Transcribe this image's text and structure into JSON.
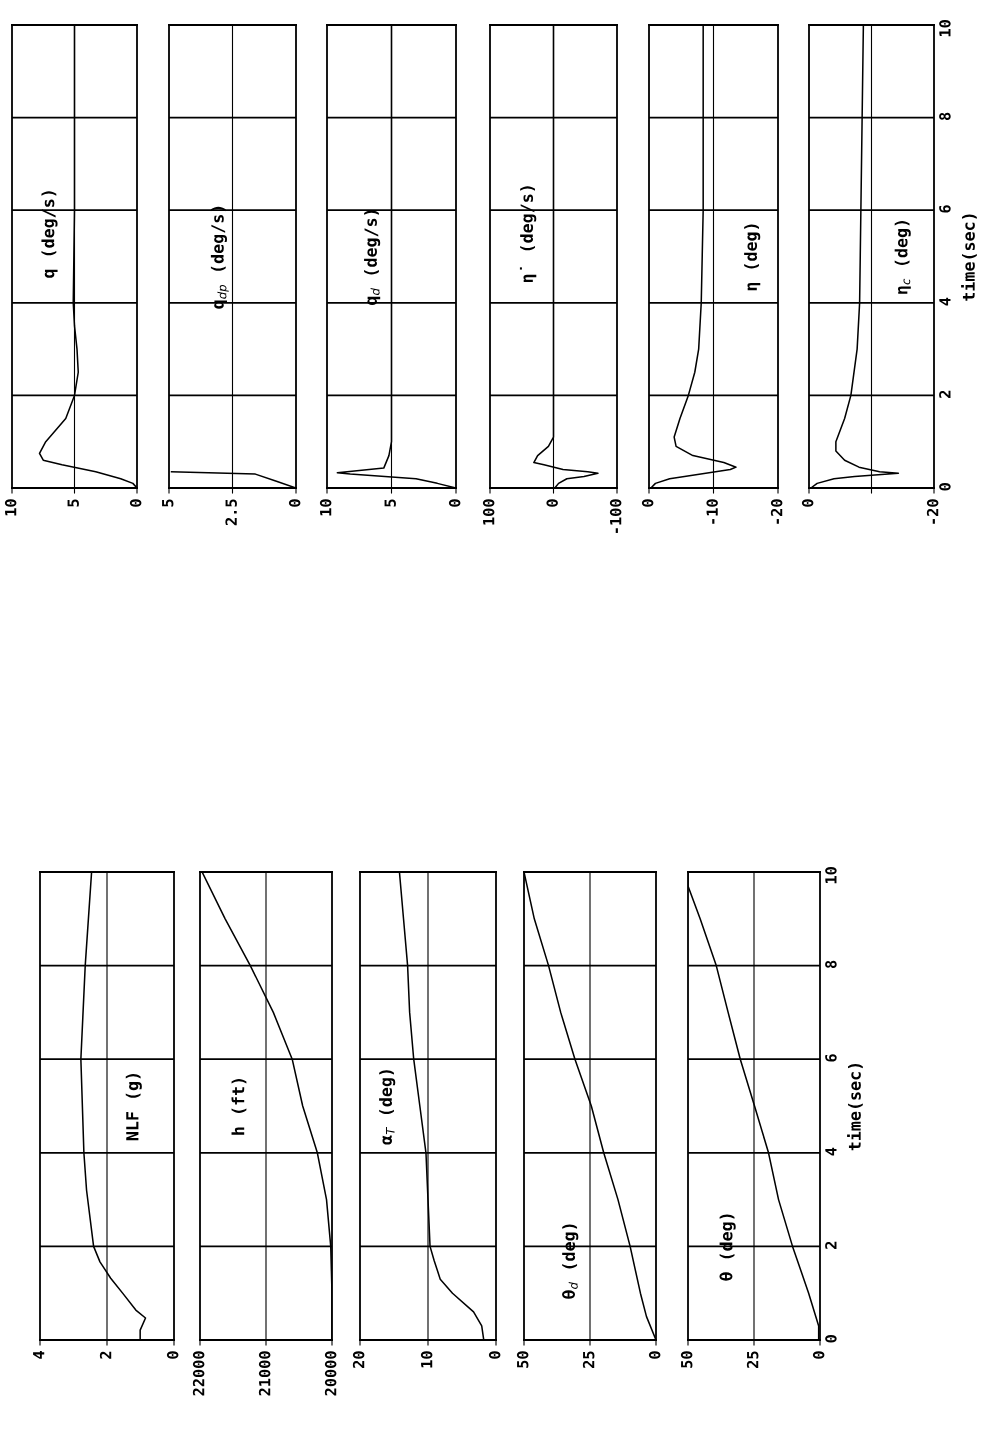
{
  "chart_data": [
    {
      "type": "line",
      "annotations": [
        "NLF (g)"
      ],
      "ylim": [
        0,
        10
      ],
      "yticks": [
        0,
        2,
        4,
        6,
        8,
        10
      ],
      "xlim": [
        4,
        0
      ],
      "xticks": [
        0,
        2,
        4
      ],
      "grid": "y",
      "tick_labels": "x",
      "ref_lines": [
        {
          "axis": "x",
          "value": 2
        }
      ],
      "series": [
        {
          "color": "#000000",
          "values": [
            0,
            0.21,
            0.47,
            0.64,
            0.98,
            1.32,
            1.67,
            2,
            3.2,
            4,
            6,
            8,
            10
          ],
          "x": [
            1.01,
            1.01,
            0.85,
            1.14,
            1.51,
            1.89,
            2.21,
            2.4,
            2.61,
            2.69,
            2.78,
            2.65,
            2.46
          ]
        }
      ]
    },
    {
      "type": "line",
      "annotations": [
        "h (ft)"
      ],
      "ylim": [
        0,
        10
      ],
      "yticks": [
        0,
        2,
        4,
        6,
        8,
        10
      ],
      "xlim": [
        22000,
        20000
      ],
      "xticks": [
        20000,
        21000,
        22000
      ],
      "grid": "y",
      "tick_labels": "x",
      "ref_lines": [
        {
          "axis": "x",
          "value": 21000
        }
      ],
      "series": [
        {
          "color": "#000000",
          "values": [
            0,
            1,
            2,
            3,
            4,
            5,
            6,
            7,
            8,
            9,
            10
          ],
          "x": [
            20000,
            20000,
            20019,
            20083,
            20222,
            20444,
            20603,
            20889,
            21238,
            21619,
            21968
          ]
        }
      ]
    },
    {
      "type": "line",
      "annotations": [
        "α$_{T}$ (deg)"
      ],
      "ylim": [
        0,
        10
      ],
      "yticks": [
        0,
        2,
        4,
        6,
        8,
        10
      ],
      "xlim": [
        20,
        0
      ],
      "xticks": [
        0,
        10,
        20
      ],
      "grid": "y",
      "tick_labels": "x",
      "ref_lines": [
        {
          "axis": "x",
          "value": 10
        }
      ],
      "series": [
        {
          "color": "#000000",
          "values": [
            0,
            0.3,
            0.6,
            1,
            1.3,
            1.7,
            2,
            3,
            4,
            5,
            6,
            7,
            8,
            9,
            10
          ],
          "x": [
            1.8,
            2.1,
            3.3,
            6.4,
            8.2,
            9.1,
            9.7,
            10,
            10.3,
            11.2,
            12.1,
            12.7,
            13,
            13.6,
            14.2
          ]
        }
      ]
    },
    {
      "type": "line",
      "annotations": [
        "θ$_{d}$ (deg)"
      ],
      "ylim": [
        0,
        10
      ],
      "yticks": [
        0,
        2,
        4,
        6,
        8,
        10
      ],
      "xlim": [
        50,
        0
      ],
      "xticks": [
        0,
        25,
        50
      ],
      "grid": "y",
      "tick_labels": "x",
      "ref_lines": [
        {
          "axis": "x",
          "value": 25
        }
      ],
      "series": [
        {
          "color": "#000000",
          "values": [
            0,
            0.5,
            1,
            2,
            3,
            4,
            5,
            6,
            7,
            8,
            9,
            10
          ],
          "x": [
            0,
            3.6,
            5.9,
            9.8,
            14.4,
            19.8,
            24.5,
            30.7,
            36.1,
            40.7,
            46.1,
            50
          ]
        }
      ]
    },
    {
      "type": "line",
      "annotations": [
        "θ (deg)"
      ],
      "ylabel": "time(sec)",
      "ylim": [
        0,
        10
      ],
      "yticks": [
        0,
        2,
        4,
        6,
        8,
        10
      ],
      "xlim": [
        50,
        0
      ],
      "xticks": [
        0,
        25,
        50
      ],
      "grid": "y",
      "ref_lines": [
        {
          "axis": "x",
          "value": 25
        }
      ],
      "series": [
        {
          "color": "#000000",
          "values": [
            0,
            0.3,
            1,
            2,
            3,
            4,
            5,
            6,
            7,
            8,
            9,
            9.7,
            10
          ],
          "x": [
            0.5,
            0.5,
            4.3,
            10.4,
            15.7,
            19.5,
            24.8,
            30.2,
            34.8,
            39.3,
            45.4,
            50,
            50
          ]
        }
      ]
    },
    {
      "type": "line",
      "annotations": [
        "q (deg/s)"
      ],
      "ylim": [
        0,
        10
      ],
      "yticks": [
        0,
        2,
        4,
        6,
        8,
        10
      ],
      "xlim": [
        10,
        0
      ],
      "xticks": [
        0,
        5,
        10
      ],
      "grid": "y",
      "tick_labels": "x",
      "ref_lines": [
        {
          "axis": "x",
          "value": 5
        }
      ],
      "series": [
        {
          "color": "#000000",
          "values": [
            0,
            0.1,
            0.2,
            0.35,
            0.5,
            0.6,
            0.75,
            1,
            1.5,
            2,
            2.5,
            3,
            3.5,
            4,
            6,
            8,
            10
          ],
          "x": [
            0,
            0.33,
            1.3,
            3.3,
            6,
            7.5,
            7.8,
            7.3,
            5.7,
            5,
            4.7,
            4.8,
            5,
            5.1,
            5,
            5,
            5
          ]
        }
      ]
    },
    {
      "type": "line",
      "annotations": [
        "q$_{dp}$ (deg/s)"
      ],
      "ylim": [
        0,
        10
      ],
      "yticks": [
        0,
        2,
        4,
        6,
        8,
        10
      ],
      "xlim": [
        5,
        0
      ],
      "xticks": [
        0,
        2.5,
        5
      ],
      "grid": "y",
      "tick_labels": "x",
      "ref_lines": [
        {
          "axis": "x",
          "value": 2.5
        }
      ],
      "series": [
        {
          "color": "#000000",
          "values": [
            0,
            0.15,
            0.3,
            0.35
          ],
          "x": [
            0,
            0.8,
            1.6,
            4.9
          ]
        }
      ]
    },
    {
      "type": "line",
      "annotations": [
        "q$_{d}$ (deg/s)"
      ],
      "ylim": [
        0,
        10
      ],
      "yticks": [
        0,
        2,
        4,
        6,
        8,
        10
      ],
      "xlim": [
        10,
        0
      ],
      "xticks": [
        0,
        5,
        10
      ],
      "grid": "y",
      "tick_labels": "x",
      "ref_lines": [
        {
          "axis": "x",
          "value": 5
        }
      ],
      "series": [
        {
          "color": "#000000",
          "values": [
            0,
            0.1,
            0.2,
            0.3,
            0.33,
            0.43,
            0.7,
            1,
            10
          ],
          "x": [
            0,
            1.45,
            3.1,
            8.2,
            9.2,
            5.6,
            5.2,
            5,
            5
          ]
        }
      ]
    },
    {
      "type": "line",
      "annotations": [
        "η̇ (deg/s)"
      ],
      "ylim": [
        0,
        10
      ],
      "yticks": [
        0,
        2,
        4,
        6,
        8,
        10
      ],
      "xlim": [
        100,
        -100
      ],
      "xticks": [
        -100,
        0,
        100
      ],
      "grid": "y",
      "tick_labels": "x",
      "ref_lines": [
        {
          "axis": "x",
          "value": 0
        }
      ],
      "series": [
        {
          "color": "#000000",
          "values": [
            0,
            0.1,
            0.2,
            0.25,
            0.32,
            0.35,
            0.4,
            0.5,
            0.55,
            0.7,
            0.9,
            1.1,
            10
          ],
          "x": [
            -2,
            -8,
            -21,
            -48,
            -70,
            -54,
            -15,
            15,
            31,
            25,
            8,
            0,
            0
          ]
        }
      ]
    },
    {
      "type": "line",
      "annotations": [
        "η (deg)"
      ],
      "ylim": [
        0,
        10
      ],
      "yticks": [
        0,
        2,
        4,
        6,
        8,
        10
      ],
      "xlim": [
        0,
        -20
      ],
      "xticks": [
        -20,
        -10,
        0
      ],
      "grid": "y",
      "tick_labels": "x",
      "ref_lines": [
        {
          "axis": "x",
          "value": -10
        }
      ],
      "series": [
        {
          "color": "#000000",
          "values": [
            0,
            0.1,
            0.2,
            0.25,
            0.4,
            0.45,
            0.55,
            0.7,
            0.9,
            1.1,
            1.5,
            2,
            2.5,
            3,
            4,
            6,
            8,
            10
          ],
          "x": [
            -0.3,
            -1,
            -3.2,
            -5.5,
            -12.6,
            -13.5,
            -11.6,
            -6.8,
            -4.2,
            -3.9,
            -4.8,
            -6.1,
            -7.1,
            -7.7,
            -8.1,
            -8.4,
            -8.4,
            -8.4
          ]
        }
      ]
    },
    {
      "type": "line",
      "annotations": [
        "η$_{c}$ (deg)"
      ],
      "ylabel": "time(sec)",
      "ylim": [
        0,
        10
      ],
      "yticks": [
        0,
        2,
        4,
        6,
        8,
        10
      ],
      "xlim": [
        0,
        -20
      ],
      "xticks": [
        -20,
        {
          "value": -10,
          "label": null
        },
        0
      ],
      "grid": "y",
      "ref_lines": [
        {
          "axis": "x",
          "value": -10
        }
      ],
      "series": [
        {
          "color": "#000000",
          "values": [
            0,
            0.1,
            0.2,
            0.25,
            0.32,
            0.35,
            0.45,
            0.6,
            0.8,
            1,
            1.5,
            2,
            3,
            4,
            6,
            10
          ],
          "x": [
            -0.3,
            -1.3,
            -4,
            -7.3,
            -14.3,
            -11.3,
            -8,
            -5.7,
            -4.3,
            -4.3,
            -5.7,
            -6.7,
            -7.7,
            -8.1,
            -8.3,
            -8.7
          ]
        }
      ]
    }
  ]
}
